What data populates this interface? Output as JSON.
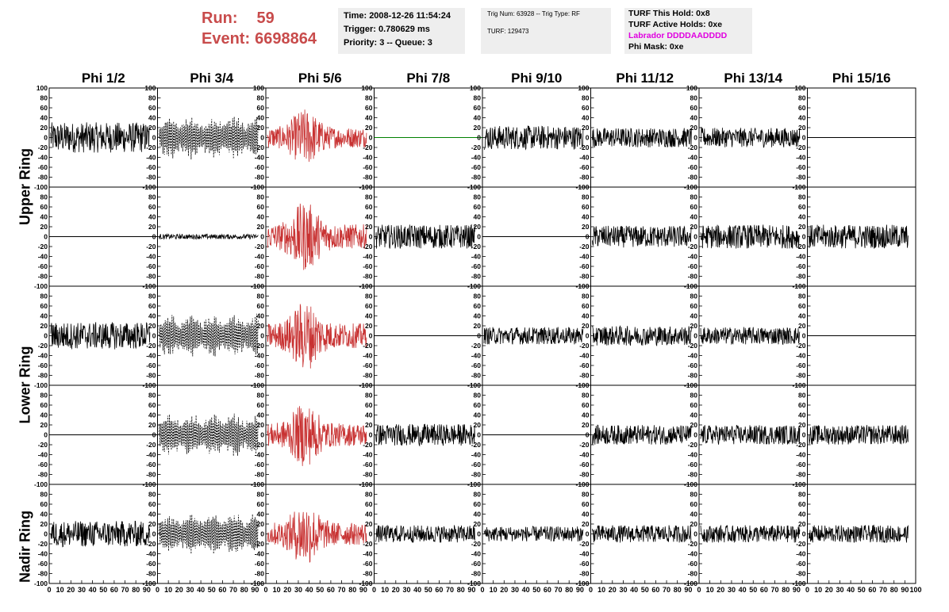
{
  "header": {
    "run_label": "Run:",
    "run_value": "59",
    "event_label": "Event:",
    "event_value": "6698864"
  },
  "time_box": {
    "time": "Time: 2008-12-26 11:54:24",
    "trigger": "Trigger: 0.780629 ms",
    "priority": "Priority: 3 -- Queue: 3"
  },
  "trig_box": {
    "trig": "Trig Num: 63928 -- Trig Type: RF",
    "turf": "TURF: 129473"
  },
  "turf_box": {
    "this_hold": "TURF This Hold: 0x8",
    "active_holds": "TURF Active Holds: 0xe",
    "labrador": "Labrador DDDDAADDDD",
    "phi_mask": "Phi Mask: 0xe"
  },
  "ring_labels": [
    "Upper Ring",
    "Lower Ring",
    "Nadir Ring"
  ],
  "colors": {
    "red_trace": "#c83232",
    "green_trace": "#008000",
    "black_trace": "#000000",
    "run_text": "#c84b4b",
    "labrador_text": "#e000e0"
  },
  "chart_data": {
    "type": "line",
    "columns": [
      "Phi 1/2",
      "Phi 3/4",
      "Phi 5/6",
      "Phi 7/8",
      "Phi 9/10",
      "Phi 11/12",
      "Phi 13/14",
      "Phi 15/16"
    ],
    "x_ticks": [
      "0",
      "10",
      "20",
      "30",
      "40",
      "50",
      "60",
      "70",
      "80",
      "90"
    ],
    "x_last_tick": "100",
    "xlim": [
      0,
      100
    ],
    "y_ticks": [
      "100",
      "80",
      "60",
      "40",
      "20",
      "0",
      "-20",
      "-40",
      "-60",
      "-80",
      "-100"
    ],
    "ylim": [
      -100,
      100
    ],
    "grid": false,
    "panels": [
      [
        "noise:28",
        "dashed:45",
        "red:45",
        "flat-green",
        "noise:22",
        "noise:18",
        "noise:18",
        "flat"
      ],
      [
        "flat",
        "small:5",
        "red:55",
        "noise:22",
        "flat",
        "noise:20",
        "noise:22",
        "noise:22"
      ],
      [
        "noise:25",
        "dashed:45",
        "red:55",
        "flat",
        "noise:16",
        "noise:18",
        "noise:16",
        "flat"
      ],
      [
        "flat",
        "dashed:45",
        "red:50",
        "noise:20",
        "flat",
        "noise:18",
        "noise:18",
        "noise:18"
      ],
      [
        "noise:24",
        "dashed:45",
        "red:50",
        "noise:16",
        "noise:14",
        "noise:16",
        "noise:16",
        "noise:16"
      ]
    ]
  }
}
